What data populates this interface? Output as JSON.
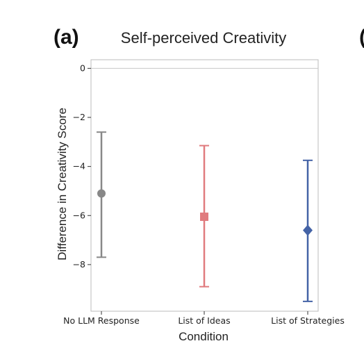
{
  "panel_label": "(a)",
  "next_panel_fragment": "(",
  "chart_data": {
    "type": "errorbar",
    "title": "Self-perceived Creativity",
    "xlabel": "Condition",
    "ylabel": "Difference in Creativity Score",
    "categories": [
      "No LLM Response",
      "List of Ideas",
      "List of Strategies"
    ],
    "ylim": [
      -9.9,
      0.35
    ],
    "yticks": [
      0,
      -2,
      -4,
      -6,
      -8
    ],
    "ytick_labels": [
      "0",
      "−2",
      "−4",
      "−6",
      "−8"
    ],
    "reference_line": 0,
    "grid": false,
    "series": [
      {
        "values": [
          -5.1,
          -6.05,
          -6.6
        ],
        "lower": [
          -7.7,
          -8.9,
          -9.5
        ],
        "upper": [
          -2.6,
          -3.15,
          -3.75
        ],
        "markers": [
          "circle",
          "square",
          "diamond"
        ],
        "colors": [
          "#888888",
          "#e07b7e",
          "#4463a6"
        ]
      }
    ]
  }
}
